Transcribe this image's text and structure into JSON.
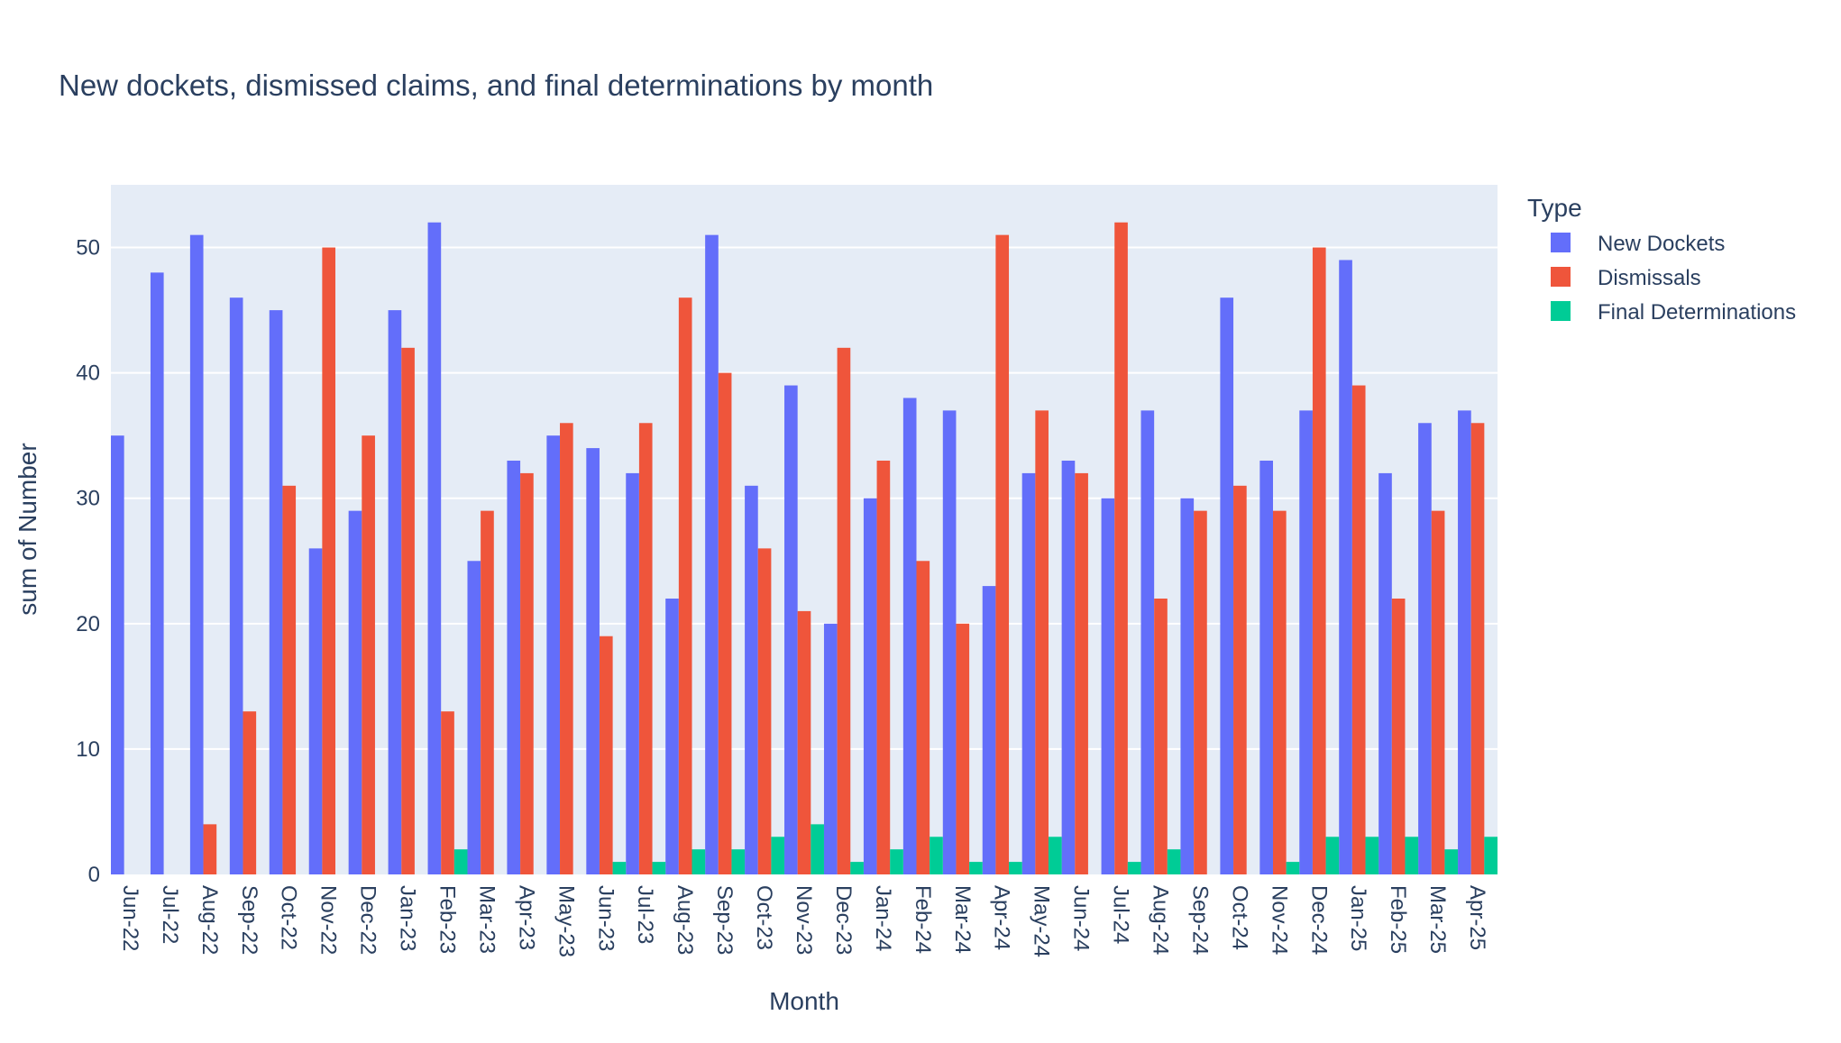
{
  "chart_data": {
    "type": "bar",
    "title": "New dockets, dismissed claims, and final determinations by month",
    "xlabel": "Month",
    "ylabel": "sum of Number",
    "ylim": [
      0,
      55
    ],
    "yticks": [
      0,
      10,
      20,
      30,
      40,
      50
    ],
    "grid": true,
    "legend": {
      "title": "Type",
      "placement": "right"
    },
    "categories": [
      "Jun-22",
      "Jul-22",
      "Aug-22",
      "Sep-22",
      "Oct-22",
      "Nov-22",
      "Dec-22",
      "Jan-23",
      "Feb-23",
      "Mar-23",
      "Apr-23",
      "May-23",
      "Jun-23",
      "Jul-23",
      "Aug-23",
      "Sep-23",
      "Oct-23",
      "Nov-23",
      "Dec-23",
      "Jan-24",
      "Feb-24",
      "Mar-24",
      "Apr-24",
      "May-24",
      "Jun-24",
      "Jul-24",
      "Aug-24",
      "Sep-24",
      "Oct-24",
      "Nov-24",
      "Dec-24",
      "Jan-25",
      "Feb-25",
      "Mar-25",
      "Apr-25"
    ],
    "series": [
      {
        "name": "New Dockets",
        "color": "#636efa",
        "values": [
          35,
          48,
          51,
          46,
          45,
          26,
          29,
          45,
          52,
          25,
          33,
          35,
          34,
          32,
          22,
          51,
          31,
          39,
          20,
          30,
          38,
          37,
          23,
          32,
          33,
          30,
          37,
          30,
          46,
          33,
          37,
          49,
          32,
          36,
          37
        ]
      },
      {
        "name": "Dismissals",
        "color": "#ef553b",
        "values": [
          0,
          0,
          4,
          13,
          31,
          50,
          35,
          42,
          13,
          29,
          32,
          36,
          19,
          36,
          46,
          40,
          26,
          21,
          42,
          33,
          25,
          20,
          51,
          37,
          32,
          52,
          22,
          29,
          31,
          29,
          50,
          39,
          22,
          29,
          36
        ]
      },
      {
        "name": "Final Determinations",
        "color": "#00cc96",
        "values": [
          0,
          0,
          0,
          0,
          0,
          0,
          0,
          0,
          2,
          0,
          0,
          0,
          1,
          1,
          2,
          2,
          3,
          4,
          1,
          2,
          3,
          1,
          1,
          3,
          0,
          1,
          2,
          0,
          0,
          1,
          3,
          3,
          3,
          2,
          3
        ]
      }
    ]
  }
}
